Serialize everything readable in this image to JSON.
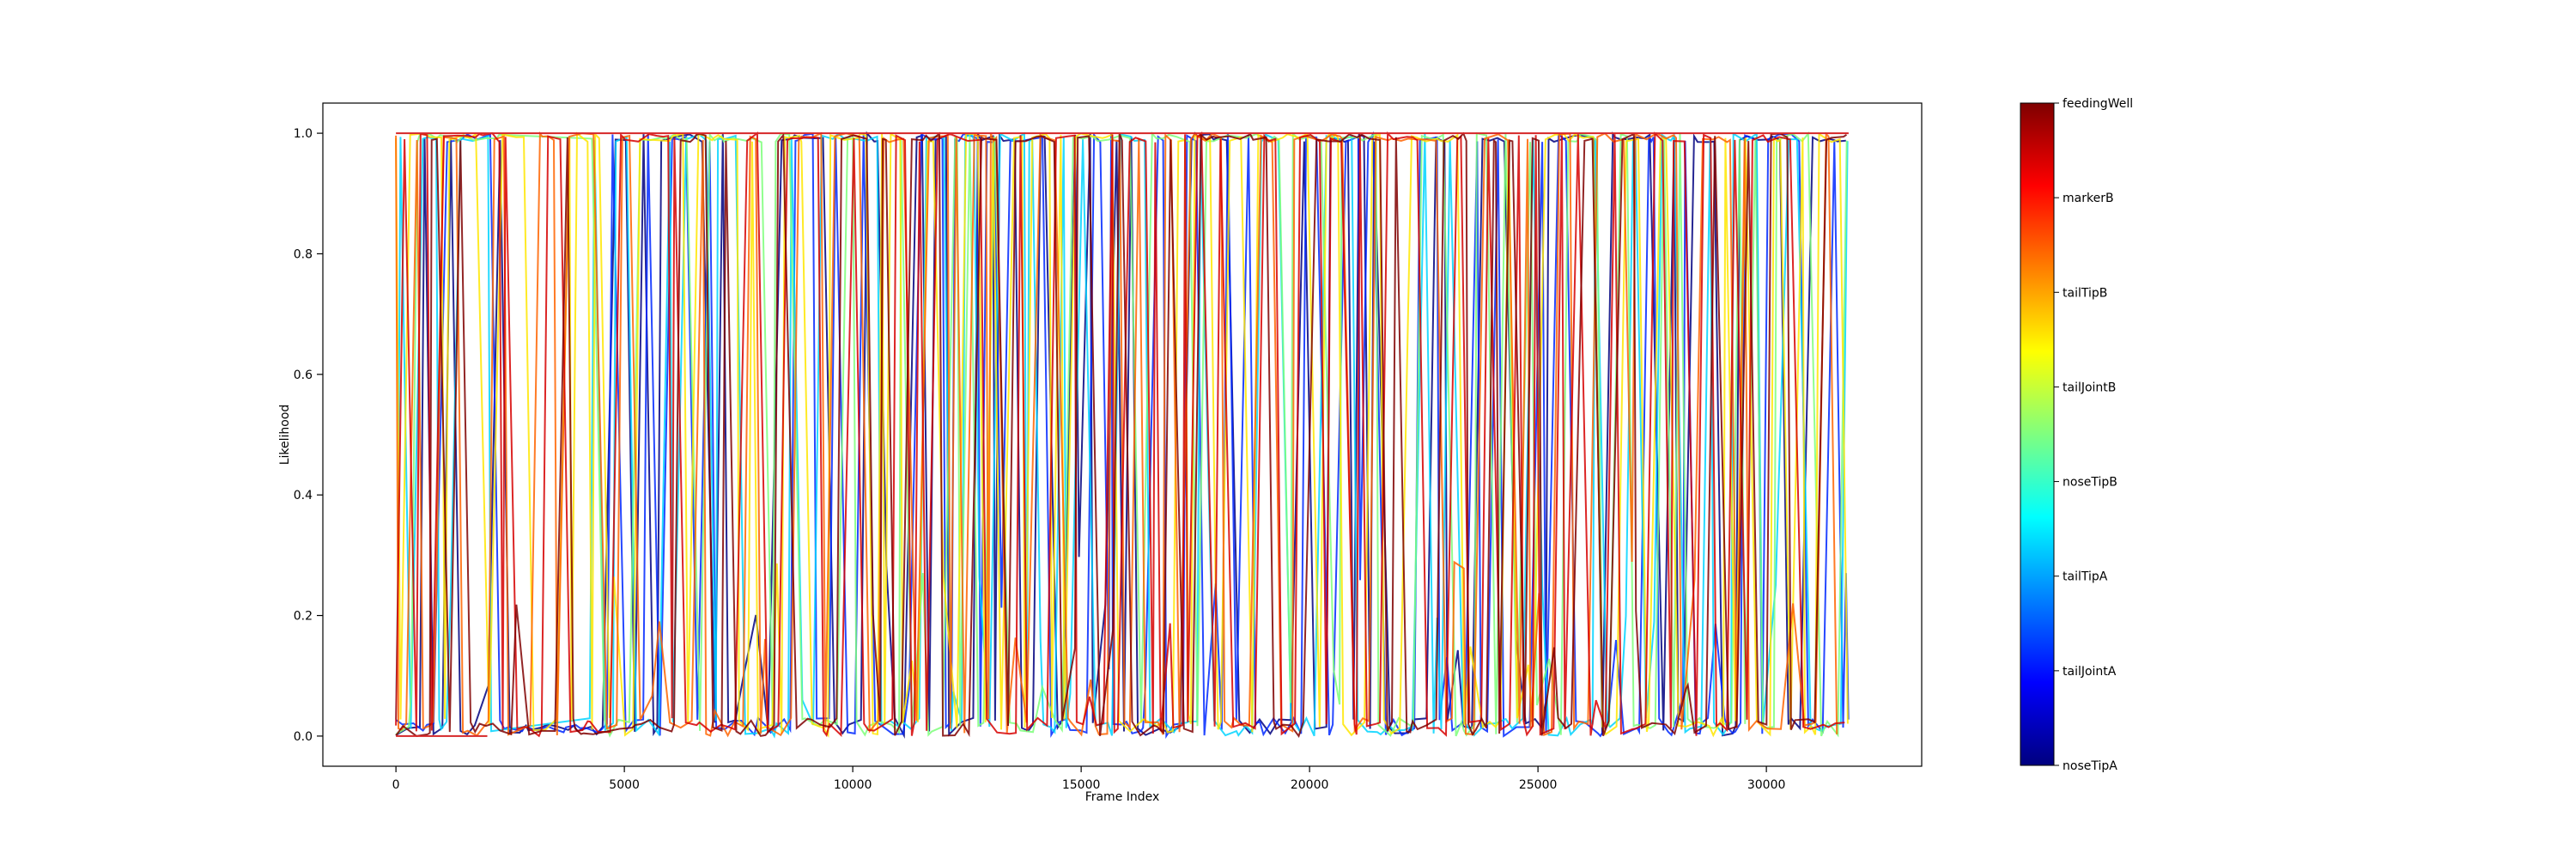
{
  "chart_data": {
    "type": "line",
    "title": "",
    "xlabel": "Frame Index",
    "ylabel": "Likelihood",
    "xlim": [
      -1600,
      33400
    ],
    "ylim": [
      -0.05,
      1.05
    ],
    "x_ticks": [
      0,
      5000,
      10000,
      15000,
      20000,
      25000,
      30000
    ],
    "y_ticks": [
      0.0,
      0.2,
      0.4,
      0.6,
      0.8,
      1.0
    ],
    "x_tick_labels": [
      "0",
      "5000",
      "10000",
      "15000",
      "20000",
      "25000",
      "30000"
    ],
    "y_tick_labels": [
      "0.0",
      "0.2",
      "0.4",
      "0.6",
      "0.8",
      "1.0"
    ],
    "x_range": [
      0,
      31800
    ],
    "grid": false,
    "colorbar": {
      "colormap": "jet",
      "labels": [
        "noseTipA",
        "tailJointA",
        "tailTipA",
        "noseTipB",
        "tailJointB",
        "tailTipB",
        "markerB",
        "feedingWell"
      ]
    },
    "series": [
      {
        "color": "#00007f"
      },
      {
        "color": "#0028ff"
      },
      {
        "color": "#00d4ff"
      },
      {
        "color": "#7dff7a"
      },
      {
        "color": "#ffe600"
      },
      {
        "color": "#ff6400"
      },
      {
        "color": "#d60000"
      },
      {
        "color": "#7f0000"
      }
    ],
    "colors": {
      "jet_stops": [
        "#00007f",
        "#0000ff",
        "#007fff",
        "#00ffff",
        "#7fff7f",
        "#ffff00",
        "#ff7f00",
        "#ff0000",
        "#7f0000"
      ]
    }
  }
}
